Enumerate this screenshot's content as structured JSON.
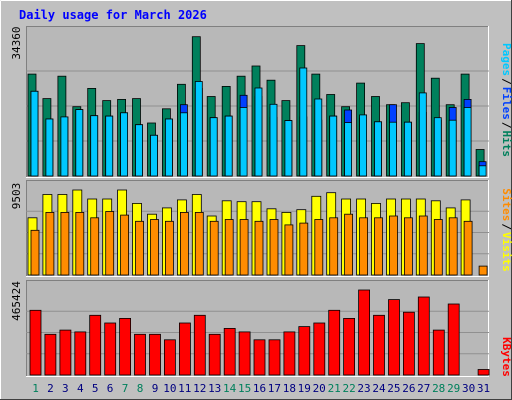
{
  "chart_data": {
    "type": "bar",
    "title": "Daily usage for March 2026",
    "categories": [
      "1",
      "2",
      "3",
      "4",
      "5",
      "6",
      "7",
      "8",
      "9",
      "10",
      "11",
      "12",
      "13",
      "14",
      "15",
      "16",
      "17",
      "18",
      "19",
      "20",
      "21",
      "22",
      "23",
      "24",
      "25",
      "26",
      "27",
      "28",
      "29",
      "30",
      "31"
    ],
    "weekend_days": [
      "1",
      "7",
      "8",
      "14",
      "15",
      "21",
      "22",
      "28",
      "29"
    ],
    "panels": [
      {
        "id": "hits_files_pages",
        "ymax_label": "34360",
        "ylim": [
          0,
          34360
        ],
        "legend": [
          "Pages",
          "Files",
          "Hits"
        ],
        "series": [
          {
            "name": "Hits",
            "color": "#00805c",
            "values": [
              25000,
              19000,
              24500,
              17000,
              21500,
              18500,
              18800,
              19000,
              13000,
              16500,
              22500,
              34200,
              19500,
              22000,
              24500,
              27000,
              23500,
              18500,
              32000,
              25000,
              20000,
              17000,
              22800,
              19500,
              17500,
              18000,
              32500,
              24000,
              17500,
              25000,
              6500
            ]
          },
          {
            "name": "Files",
            "color": "#0040ff",
            "values": [
              20800,
              14000,
              14500,
              16300,
              14800,
              14700,
              15500,
              12600,
              10000,
              14000,
              17500,
              21500,
              14300,
              14700,
              19800,
              19500,
              14400,
              13600,
              14500,
              13700,
              14700,
              16200,
              14200,
              13300,
              17500,
              13200,
              15600,
              13700,
              16800,
              18800,
              3500
            ]
          },
          {
            "name": "Pages",
            "color": "#00c8ff",
            "values": [
              20800,
              14000,
              14500,
              16300,
              14800,
              14700,
              15500,
              12600,
              10000,
              14000,
              15500,
              23200,
              14300,
              14700,
              16800,
              21600,
              17600,
              13600,
              26500,
              18900,
              14700,
              13100,
              15000,
              13300,
              13200,
              13200,
              20400,
              14300,
              13700,
              16800,
              2500
            ]
          }
        ]
      },
      {
        "id": "visits_sites",
        "ymax_label": "9503",
        "ylim": [
          0,
          9503
        ],
        "legend": [
          "Sites",
          "Visits"
        ],
        "series": [
          {
            "name": "Visits",
            "color": "#ffff00",
            "values": [
              6400,
              9000,
              9000,
              9503,
              8500,
              8500,
              9503,
              8000,
              6800,
              7500,
              8400,
              9000,
              6600,
              8300,
              8200,
              8200,
              7400,
              7000,
              7300,
              8800,
              9200,
              8500,
              8500,
              8000,
              8500,
              8500,
              8500,
              8300,
              7500,
              8400,
              0
            ]
          },
          {
            "name": "Sites",
            "color": "#ff8c00",
            "values": [
              5000,
              7000,
              7000,
              7000,
              6400,
              7100,
              6700,
              6000,
              6200,
              6000,
              7000,
              7000,
              6000,
              6200,
              6200,
              6000,
              6200,
              5600,
              5800,
              6200,
              6400,
              6800,
              6400,
              6400,
              6600,
              6400,
              6600,
              6200,
              6400,
              6000,
              1000
            ]
          }
        ]
      },
      {
        "id": "kbytes",
        "ymax_label": "465424",
        "ylim": [
          0,
          465424
        ],
        "legend": [
          "KBytes"
        ],
        "series": [
          {
            "name": "KBytes",
            "color": "#ff0000",
            "values": [
              354000,
              223000,
              246000,
              236000,
              327000,
              285000,
              310000,
              223000,
              223000,
              193000,
              285000,
              327000,
              223000,
              255000,
              236000,
              193000,
              193000,
              236000,
              265000,
              285000,
              354000,
              310000,
              465424,
              327000,
              413000,
              344000,
              427000,
              246000,
              389000,
              0,
              30000
            ]
          }
        ]
      }
    ]
  },
  "colors": {
    "frame": "#c0c0c0",
    "plot_bg": "#b8b8b8",
    "title": "#0000ff",
    "axis_text": "#000000",
    "day_weekday": "#000080",
    "day_weekend": "#00805c"
  }
}
